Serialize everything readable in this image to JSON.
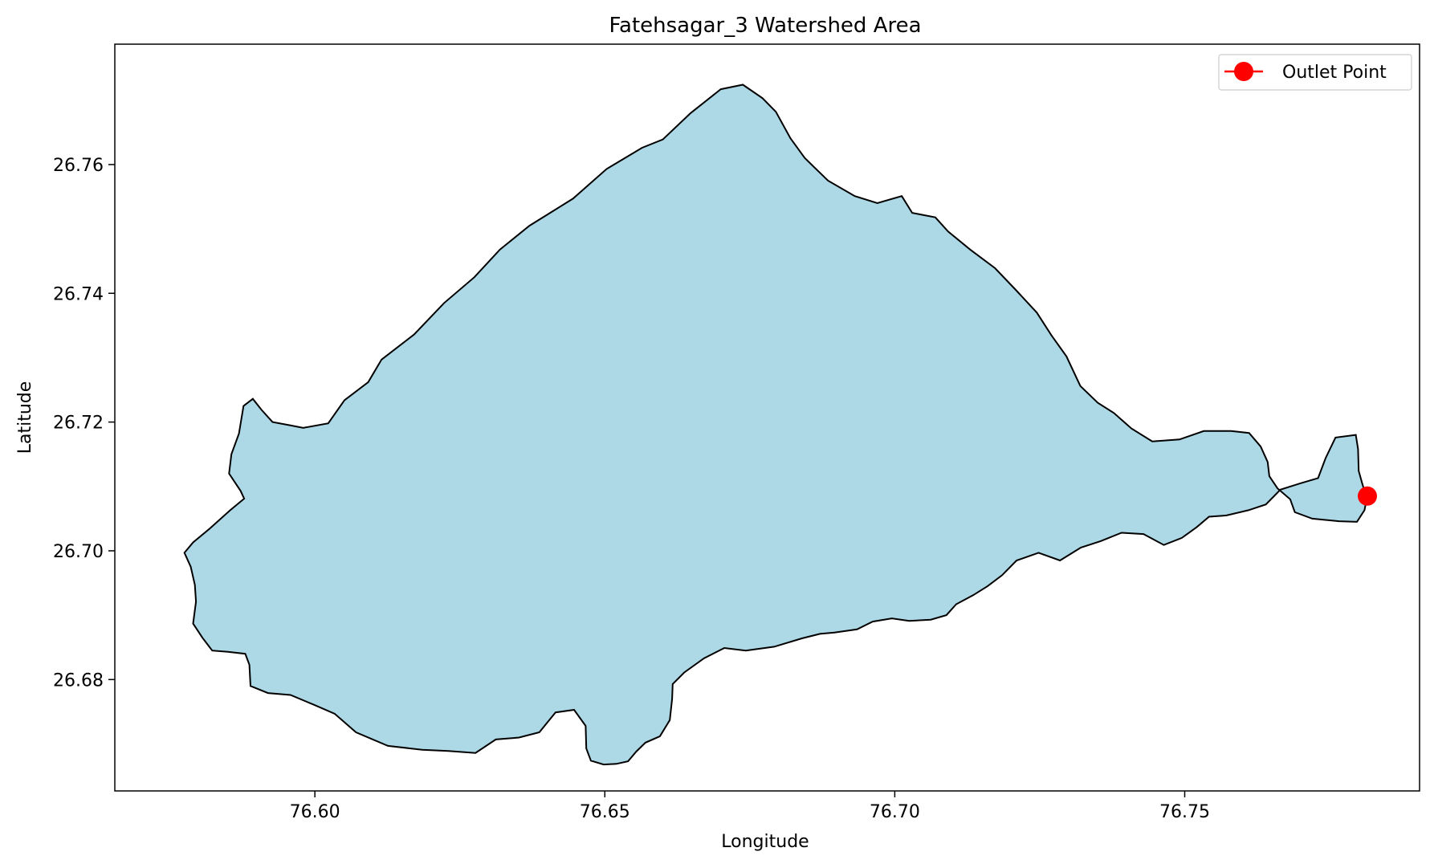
{
  "chart_data": {
    "type": "area",
    "title": "Fatehsagar_3 Watershed Area",
    "xlabel": "Longitude",
    "ylabel": "Latitude",
    "xlim": [
      76.5655,
      76.7905
    ],
    "ylim": [
      26.6627,
      26.7787
    ],
    "x_ticks": [
      76.6,
      76.65,
      76.7,
      76.75
    ],
    "x_tick_labels": [
      "76.60",
      "76.65",
      "76.70",
      "76.75"
    ],
    "y_ticks": [
      26.68,
      26.7,
      26.72,
      26.74,
      26.76
    ],
    "y_tick_labels": [
      "26.68",
      "26.70",
      "26.72",
      "26.74",
      "26.76"
    ],
    "grid": false,
    "legend": {
      "position": "top-right",
      "entries": [
        {
          "label": "Outlet Point",
          "color": "#ff0000",
          "marker": "circle"
        }
      ]
    },
    "colors": {
      "fill": "#add8e6",
      "edge": "#000000",
      "outlet": "#ff0000"
    },
    "series": [
      {
        "type": "polygon",
        "boundary": [
          [
            76.5775,
            26.6997
          ],
          [
            76.579,
            26.7013
          ],
          [
            76.5818,
            26.7034
          ],
          [
            76.5854,
            26.7063
          ],
          [
            76.5878,
            26.7081
          ],
          [
            76.5872,
            26.7093
          ],
          [
            76.5852,
            26.712
          ],
          [
            76.5856,
            26.715
          ],
          [
            76.5869,
            26.7182
          ],
          [
            76.5877,
            26.7225
          ],
          [
            76.5893,
            26.7236
          ],
          [
            76.5908,
            26.7219
          ],
          [
            76.5927,
            26.72
          ],
          [
            76.5957,
            26.7195
          ],
          [
            76.598,
            26.7191
          ],
          [
            76.6023,
            26.7198
          ],
          [
            76.6051,
            26.7234
          ],
          [
            76.6092,
            26.7262
          ],
          [
            76.6115,
            26.7297
          ],
          [
            76.6171,
            26.7336
          ],
          [
            76.6223,
            26.7385
          ],
          [
            76.6275,
            26.7425
          ],
          [
            76.6319,
            26.7468
          ],
          [
            76.637,
            26.7505
          ],
          [
            76.6445,
            26.7547
          ],
          [
            76.6503,
            26.7593
          ],
          [
            76.6564,
            26.7626
          ],
          [
            76.66,
            26.7639
          ],
          [
            76.6648,
            26.768
          ],
          [
            76.67,
            26.7717
          ],
          [
            76.6738,
            26.7724
          ],
          [
            76.6772,
            26.7703
          ],
          [
            76.6795,
            26.7682
          ],
          [
            76.682,
            26.7641
          ],
          [
            76.6845,
            26.761
          ],
          [
            76.6885,
            26.7575
          ],
          [
            76.6931,
            26.7551
          ],
          [
            76.697,
            26.754
          ],
          [
            76.7012,
            26.7551
          ],
          [
            76.703,
            26.7525
          ],
          [
            76.707,
            26.7518
          ],
          [
            76.7092,
            26.7496
          ],
          [
            76.713,
            26.7468
          ],
          [
            76.7173,
            26.7439
          ],
          [
            76.7208,
            26.7406
          ],
          [
            76.7245,
            26.737
          ],
          [
            76.727,
            26.7335
          ],
          [
            76.7296,
            26.7302
          ],
          [
            76.732,
            26.7256
          ],
          [
            76.735,
            26.723
          ],
          [
            76.7378,
            26.7214
          ],
          [
            76.7408,
            26.719
          ],
          [
            76.7444,
            26.717
          ],
          [
            76.7491,
            26.7173
          ],
          [
            76.7533,
            26.7186
          ],
          [
            76.758,
            26.7186
          ],
          [
            76.7611,
            26.7183
          ],
          [
            76.7631,
            26.7162
          ],
          [
            76.7643,
            26.7138
          ],
          [
            76.7646,
            26.7116
          ],
          [
            76.766,
            26.7097
          ],
          [
            76.7682,
            26.708
          ],
          [
            76.769,
            26.706
          ],
          [
            76.772,
            26.705
          ],
          [
            76.7766,
            26.7046
          ],
          [
            76.7797,
            26.7045
          ],
          [
            76.781,
            26.7063
          ],
          [
            76.7814,
            26.7081
          ],
          [
            76.7806,
            26.7105
          ],
          [
            76.78,
            26.7124
          ],
          [
            76.7799,
            26.7158
          ],
          [
            76.7795,
            26.718
          ],
          [
            76.776,
            26.7176
          ],
          [
            76.7743,
            26.7144
          ],
          [
            76.773,
            26.7113
          ],
          [
            76.77,
            26.7105
          ],
          [
            76.7665,
            26.7095
          ],
          [
            76.764,
            26.7072
          ],
          [
            76.761,
            26.7063
          ],
          [
            76.7572,
            26.7055
          ],
          [
            76.7542,
            26.7053
          ],
          [
            76.7521,
            26.7037
          ],
          [
            76.7495,
            26.702
          ],
          [
            76.7464,
            26.7009
          ],
          [
            76.7429,
            26.7026
          ],
          [
            76.7391,
            26.7028
          ],
          [
            76.7355,
            26.7015
          ],
          [
            76.7321,
            26.7005
          ],
          [
            76.7285,
            26.6985
          ],
          [
            76.7248,
            26.6997
          ],
          [
            76.721,
            26.6985
          ],
          [
            76.7185,
            26.6962
          ],
          [
            76.716,
            26.6945
          ],
          [
            76.7135,
            26.6931
          ],
          [
            76.7106,
            26.6917
          ],
          [
            76.7089,
            26.69
          ],
          [
            76.7062,
            26.6893
          ],
          [
            76.7025,
            26.6891
          ],
          [
            76.6995,
            26.6895
          ],
          [
            76.6962,
            26.689
          ],
          [
            76.6935,
            26.6878
          ],
          [
            76.6896,
            26.6873
          ],
          [
            76.6871,
            26.6871
          ],
          [
            76.684,
            26.6864
          ],
          [
            76.6792,
            26.6851
          ],
          [
            76.6743,
            26.6845
          ],
          [
            76.6706,
            26.6849
          ],
          [
            76.6671,
            26.6833
          ],
          [
            76.6637,
            26.6811
          ],
          [
            76.6617,
            26.6793
          ],
          [
            76.6616,
            26.677
          ],
          [
            76.6612,
            26.6737
          ],
          [
            76.6595,
            26.6712
          ],
          [
            76.657,
            26.6702
          ],
          [
            76.6554,
            26.6688
          ],
          [
            76.654,
            26.6673
          ],
          [
            76.652,
            26.6669
          ],
          [
            76.6498,
            26.6668
          ],
          [
            76.6476,
            26.6674
          ],
          [
            76.6468,
            26.6693
          ],
          [
            76.6467,
            26.6728
          ],
          [
            76.6447,
            26.6753
          ],
          [
            76.6415,
            26.6749
          ],
          [
            76.6387,
            26.6718
          ],
          [
            76.6352,
            26.671
          ],
          [
            76.6312,
            26.6707
          ],
          [
            76.6277,
            26.6686
          ],
          [
            76.623,
            26.6689
          ],
          [
            76.6185,
            26.6691
          ],
          [
            76.6126,
            26.6697
          ],
          [
            76.6071,
            26.6718
          ],
          [
            76.6034,
            26.6747
          ],
          [
            76.5998,
            26.6761
          ],
          [
            76.5958,
            26.6776
          ],
          [
            76.5919,
            26.6779
          ],
          [
            76.5889,
            26.679
          ],
          [
            76.5887,
            26.6823
          ],
          [
            76.588,
            26.684
          ],
          [
            76.585,
            26.6843
          ],
          [
            76.5823,
            26.6845
          ],
          [
            76.5806,
            26.6865
          ],
          [
            76.579,
            26.6887
          ],
          [
            76.5795,
            26.6921
          ],
          [
            76.5793,
            26.6947
          ],
          [
            76.5786,
            26.6975
          ],
          [
            76.5775,
            26.6997
          ]
        ]
      },
      {
        "name": "Outlet Point",
        "type": "scatter",
        "x": [
          76.7815
        ],
        "y": [
          26.7085
        ]
      }
    ]
  }
}
